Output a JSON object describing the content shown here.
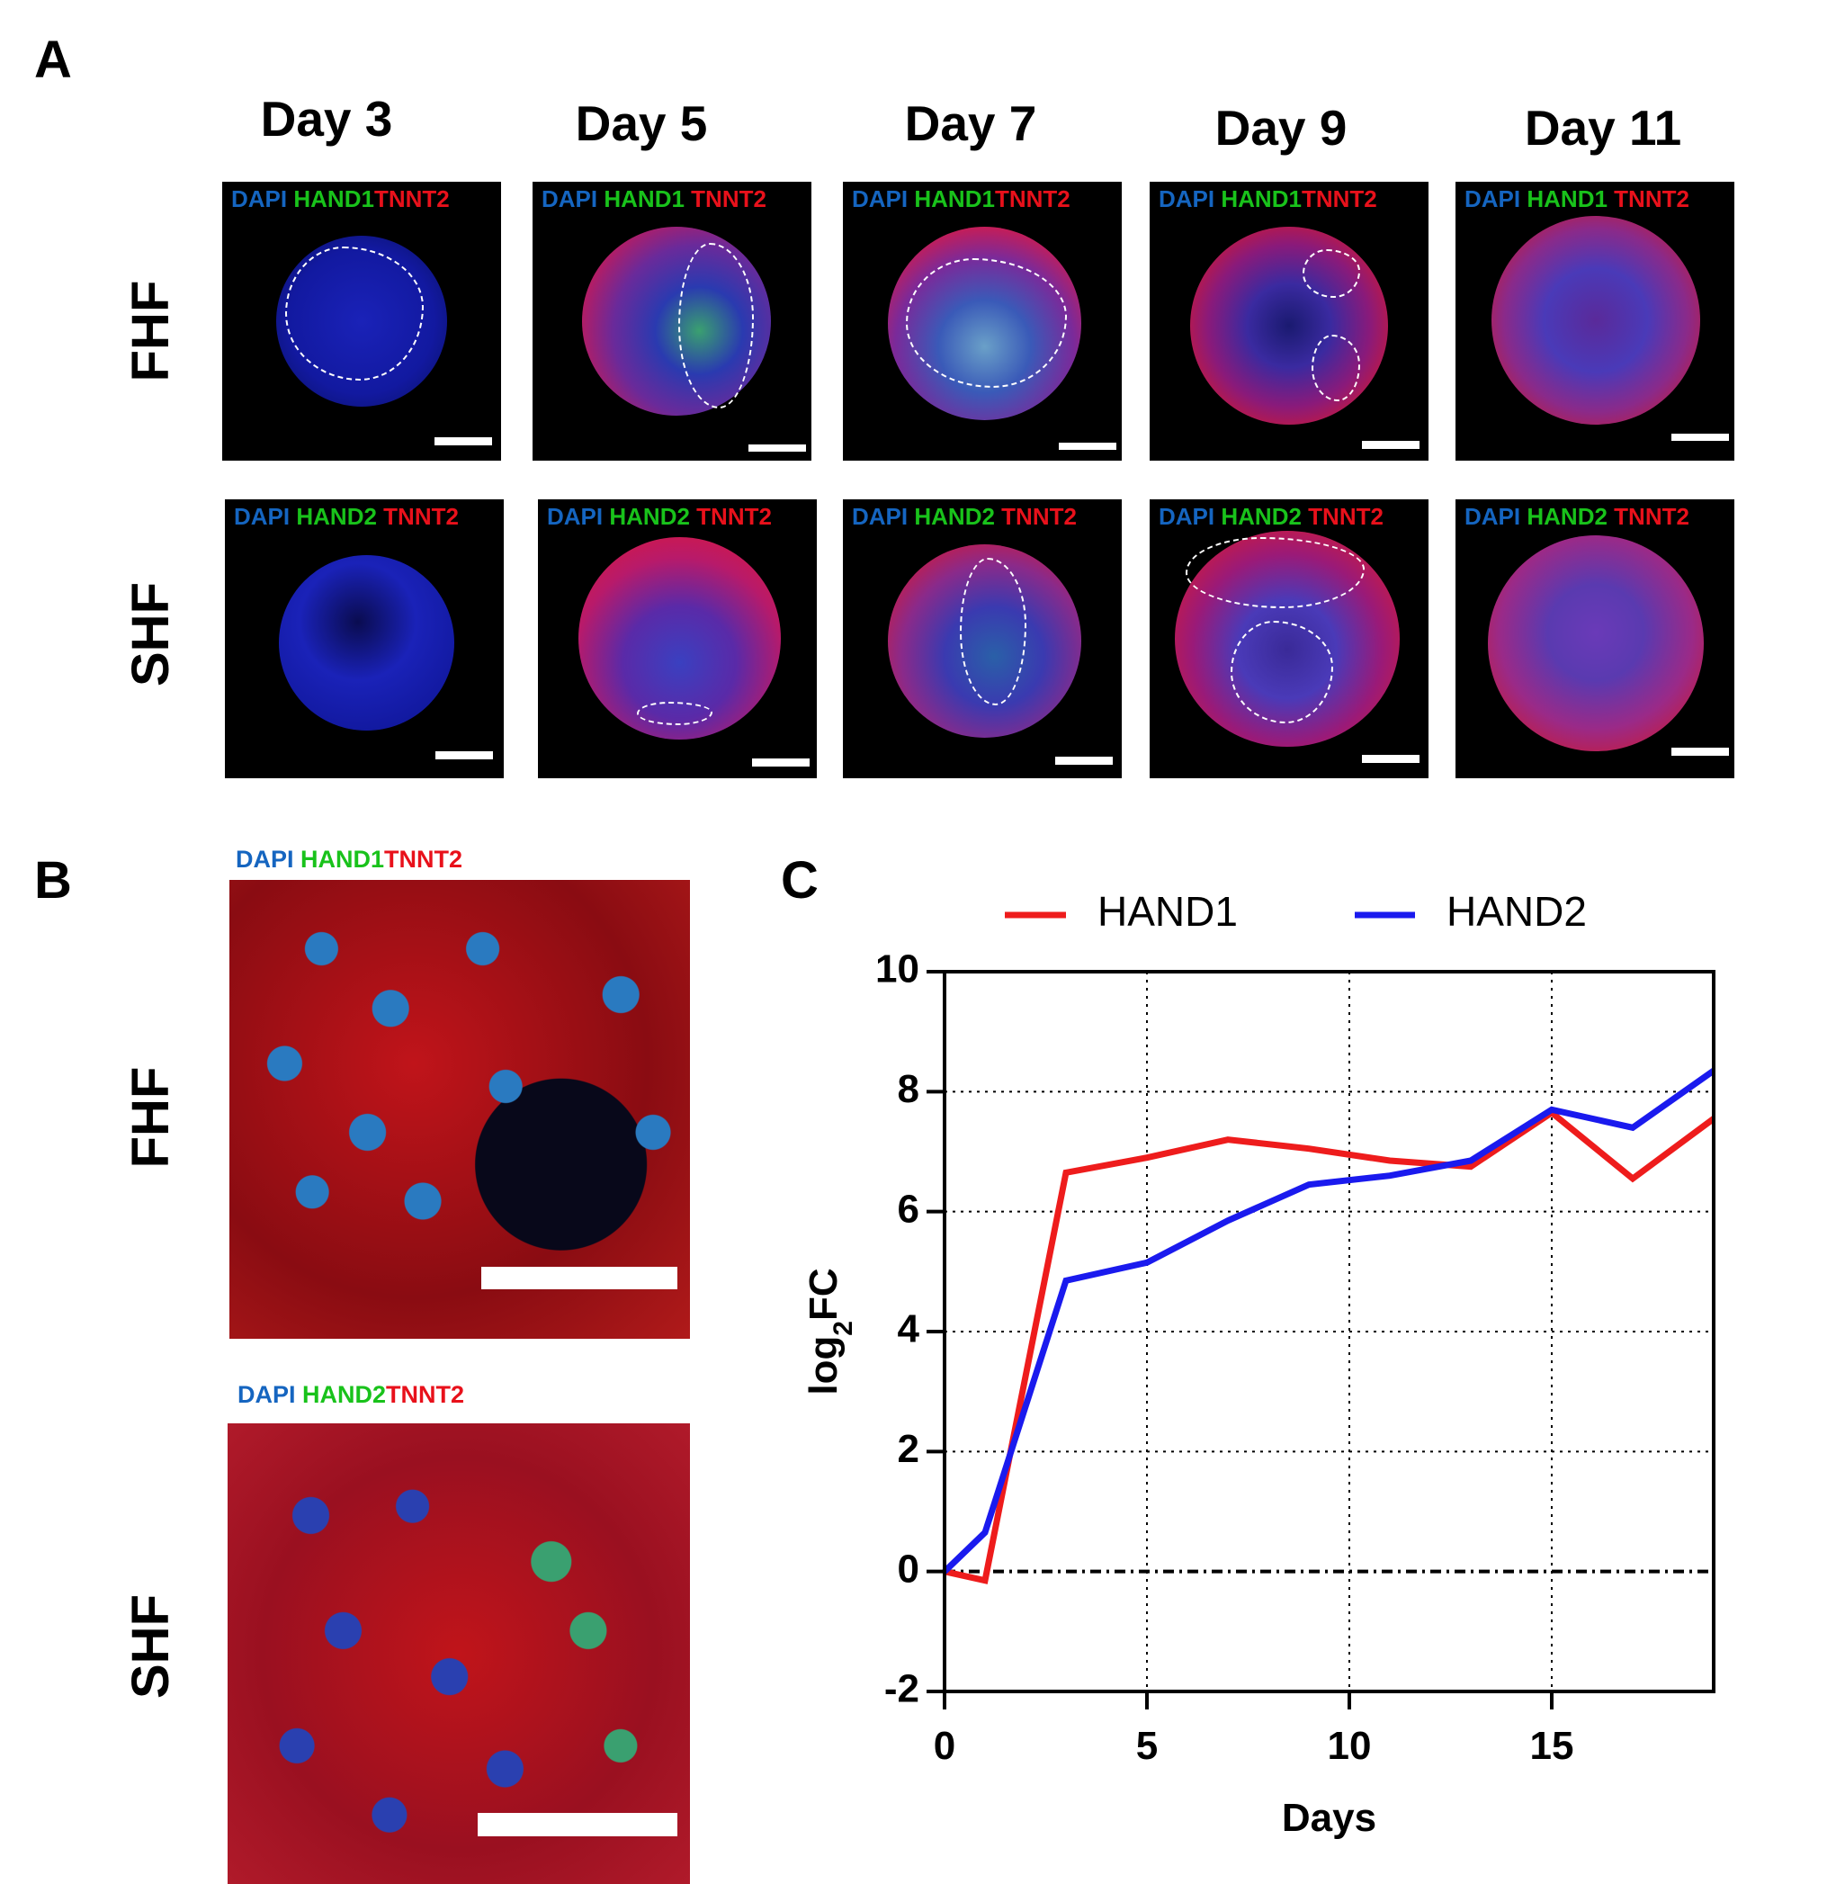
{
  "panel_labels": {
    "a": "A",
    "b": "B",
    "c": "C"
  },
  "days": [
    "Day 3",
    "Day 5",
    "Day 7",
    "Day 9",
    "Day 11"
  ],
  "rows": {
    "fhf": "FHF",
    "shf": "SHF"
  },
  "stains": {
    "dapi": "DAPI",
    "hand1": "HAND1",
    "hand2": "HAND2",
    "tnnt2": "TNNT2"
  },
  "colors": {
    "dapi": "#1565c0",
    "hand": "#19c21b",
    "tnnt2": "#e8111b",
    "hand1_line": "#ee1c1c",
    "hand2_line": "#1a1aee"
  },
  "chart_data": {
    "type": "line",
    "title": "",
    "xlabel": "Days",
    "ylabel_main": "log",
    "ylabel_sub": "2",
    "ylabel_tail": "FC",
    "xlim": [
      0,
      19
    ],
    "ylim": [
      -2,
      10
    ],
    "xticks": [
      "0",
      "5",
      "10",
      "15"
    ],
    "xtick_values": [
      0,
      5,
      10,
      15
    ],
    "yticks": [
      "-2",
      "0",
      "2",
      "4",
      "6",
      "8",
      "10"
    ],
    "ytick_values": [
      -2,
      0,
      2,
      4,
      6,
      8,
      10
    ],
    "grid": true,
    "legend_position": "top",
    "series": [
      {
        "name": "HAND1",
        "color": "#ee1c1c",
        "x": [
          0,
          1,
          3,
          5,
          7,
          9,
          11,
          13,
          15,
          17,
          19
        ],
        "y": [
          0,
          -0.15,
          6.65,
          6.9,
          7.2,
          7.05,
          6.85,
          6.75,
          7.65,
          6.55,
          7.55
        ]
      },
      {
        "name": "HAND2",
        "color": "#1a1aee",
        "x": [
          0,
          1,
          3,
          5,
          7,
          9,
          11,
          13,
          15,
          17,
          19
        ],
        "y": [
          0,
          0.65,
          4.85,
          5.15,
          5.85,
          6.45,
          6.6,
          6.85,
          7.7,
          7.4,
          8.35
        ]
      }
    ]
  }
}
